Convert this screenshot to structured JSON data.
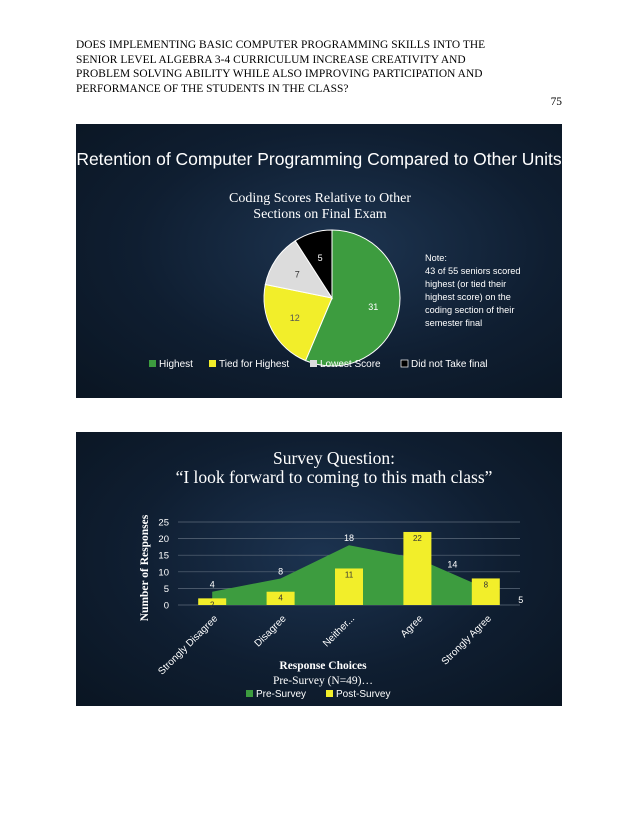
{
  "header": {
    "title_lines": [
      "DOES IMPLEMENTING BASIC COMPUTER PROGRAMMING SKILLS INTO THE",
      "SENIOR LEVEL ALGEBRA 3-4 CURRICULUM INCREASE CREATIVITY AND",
      "PROBLEM SOLVING ABILITY WHILE ALSO IMPROVING PARTICIPATION AND",
      "PERFORMANCE OF THE STUDENTS IN THE CLASS?"
    ],
    "page_number": "75"
  },
  "slide1": {
    "heading": "Retention of Computer Programming Compared to Other Units",
    "note": {
      "lines": [
        "Note:",
        "43 of 55 seniors scored",
        "highest (or tied their",
        "highest score) on the",
        "coding section of their",
        "semester final"
      ]
    }
  },
  "slide2": {
    "heading": "Survey Question:",
    "quote": "“I look forward to coming to this math class”",
    "caption": "Pre-Survey (N=49)…"
  },
  "chart_data": [
    {
      "type": "pie",
      "title": "Coding Scores Relative to Other Sections on Final Exam",
      "title_lines": [
        "Coding Scores Relative to Other",
        "Sections on Final Exam"
      ],
      "labels": [
        "Highest",
        "Tied for Highest",
        "Lowest Score",
        "Did not Take final"
      ],
      "values": [
        31,
        12,
        7,
        5
      ],
      "colors": [
        "#3d9c3f",
        "#f2ee2a",
        "#dcdcdc",
        "#000000"
      ],
      "legend_position": "bottom"
    },
    {
      "type": "bar",
      "categories": [
        "Strongly Disagree",
        "Disagree",
        "Neither...",
        "Agree",
        "Strongly Agree"
      ],
      "series": [
        {
          "name": "Pre-Survey",
          "kind": "area",
          "values": [
            4,
            8,
            18,
            14,
            5
          ],
          "color": "#3d9c3f"
        },
        {
          "name": "Post-Survey",
          "kind": "bar",
          "values": [
            2,
            4,
            11,
            22,
            8
          ],
          "color": "#f2ee2a"
        }
      ],
      "xlabel": "Response Choices",
      "ylabel": "Number of Responses",
      "ylim": [
        0,
        25
      ],
      "yticks": [
        0,
        5,
        10,
        15,
        20,
        25
      ],
      "grid": true,
      "legend_position": "bottom"
    }
  ]
}
